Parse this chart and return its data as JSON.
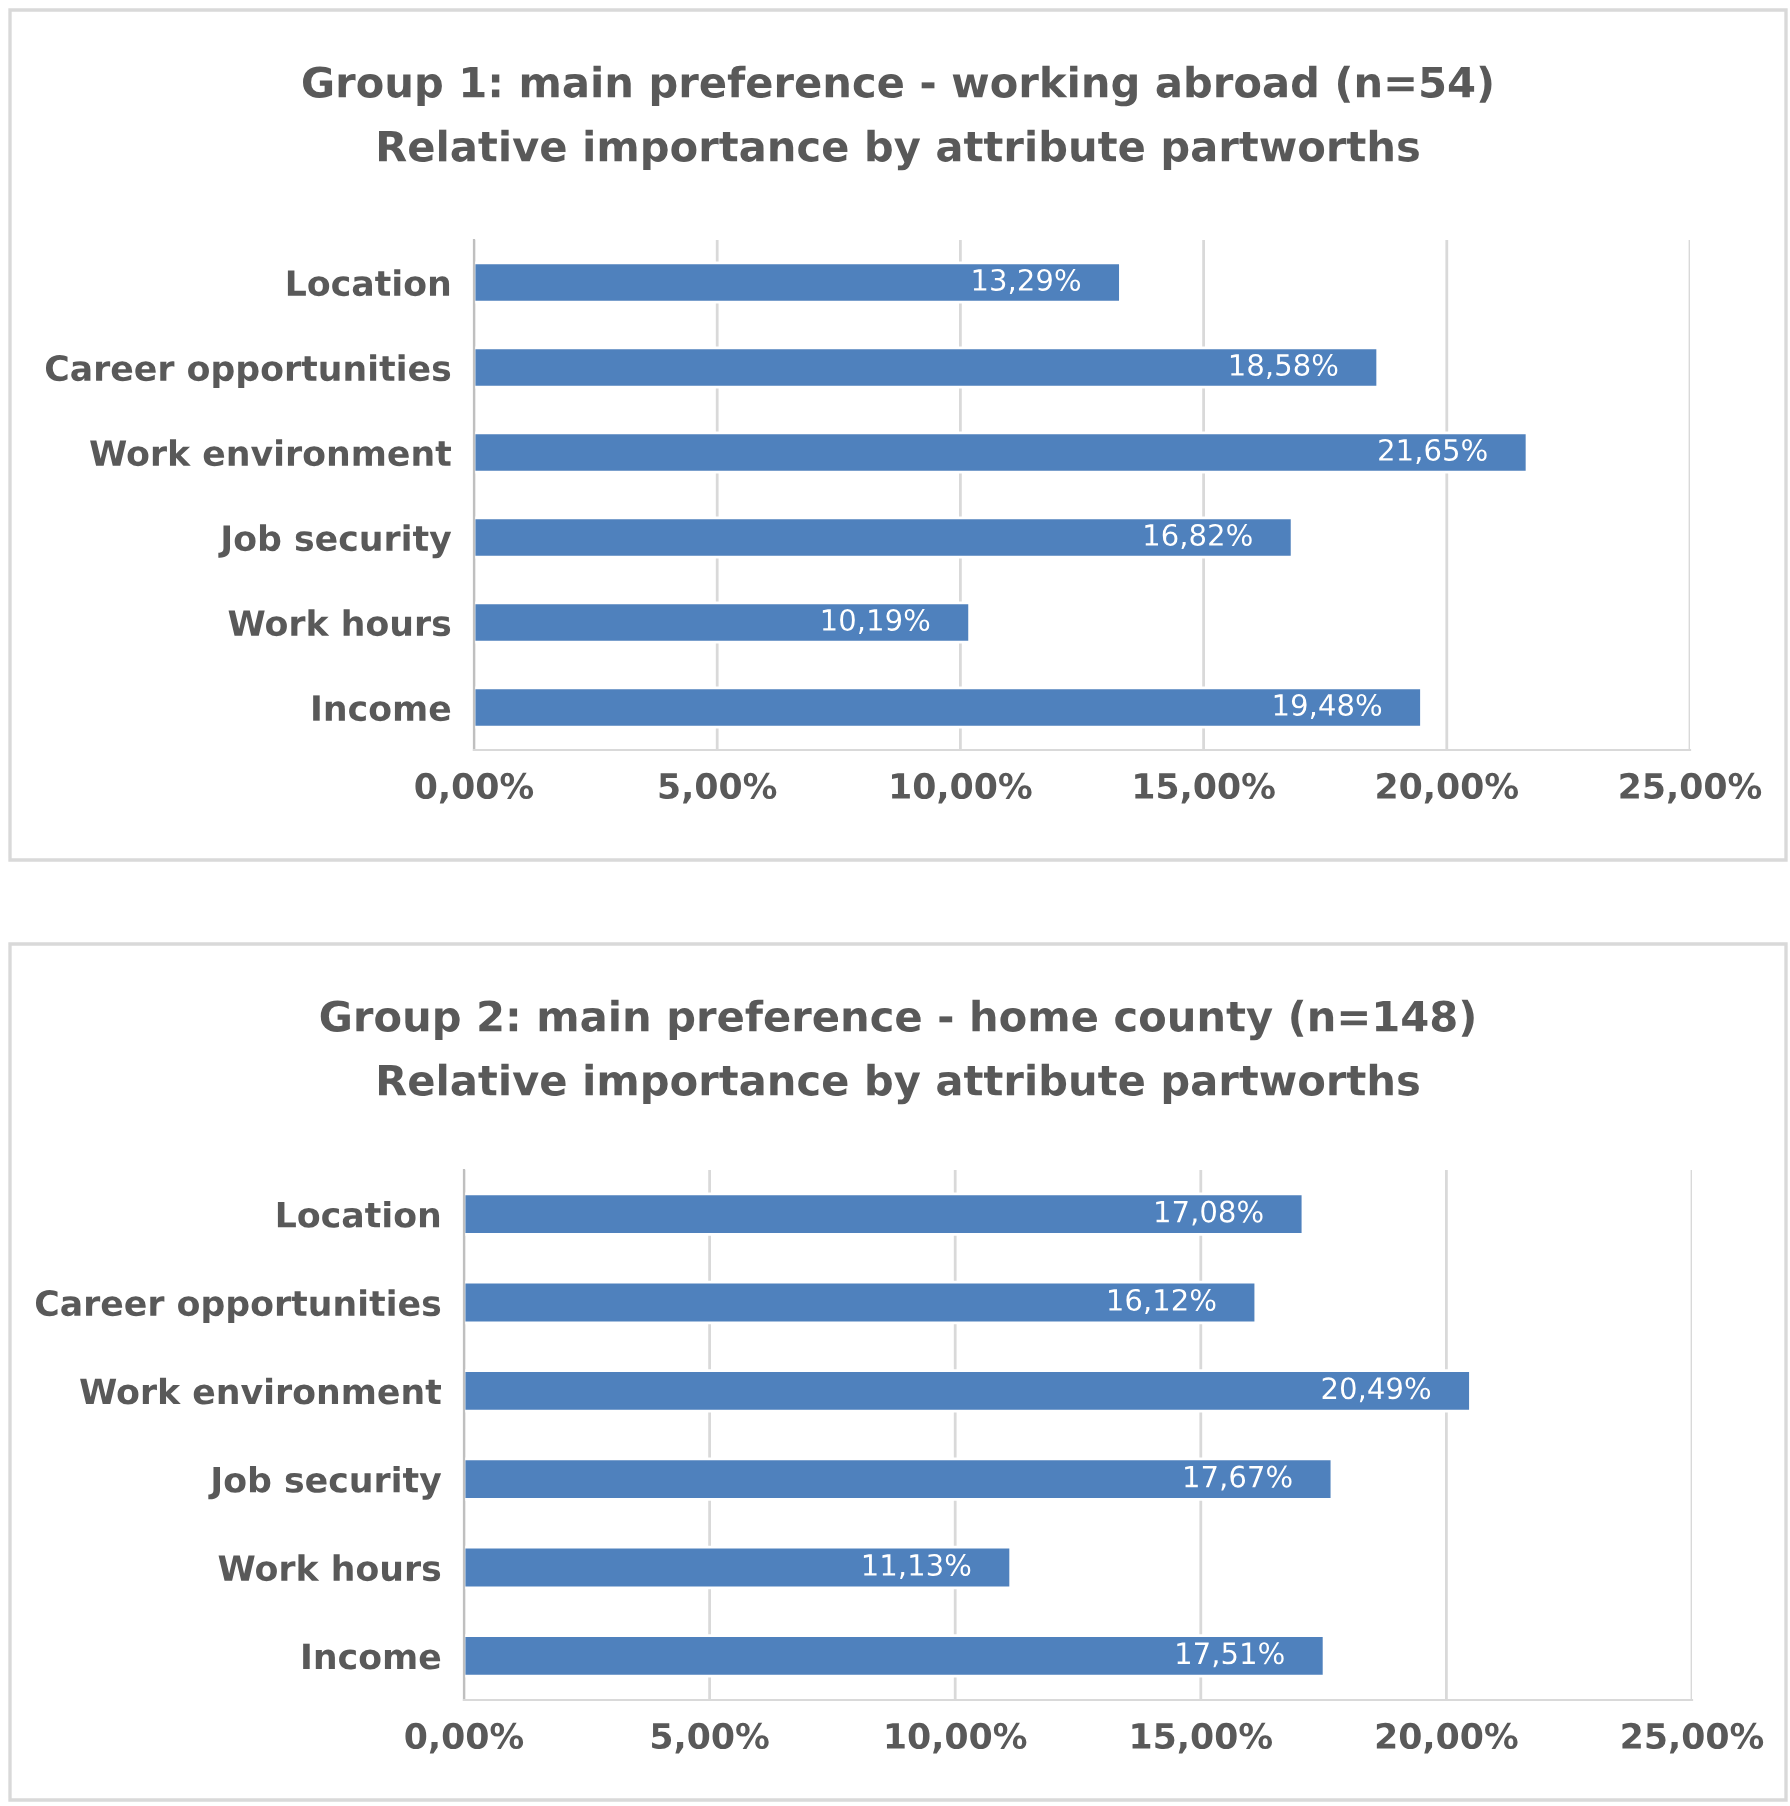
{
  "chart_data": [
    {
      "type": "bar",
      "orientation": "horizontal",
      "title": "Group 1: main preference - working abroad (n=54)",
      "subtitle": "Relative importance by attribute partworths",
      "categories": [
        "Location",
        "Career opportunities",
        "Work environment",
        "Job security",
        "Work hours",
        "Income"
      ],
      "values": [
        13.29,
        18.58,
        21.65,
        16.82,
        10.19,
        19.48
      ],
      "color": "#4f81bd",
      "value_labels": [
        "13,29%",
        "18,58%",
        "21,65%",
        "16,82%",
        "10,19%",
        "19,48%"
      ],
      "xlim": [
        0,
        25
      ],
      "xticks": [
        {
          "value": 0,
          "label": "0,00%"
        },
        {
          "value": 5,
          "label": "5,00%"
        },
        {
          "value": 10,
          "label": "10,00%"
        },
        {
          "value": 15,
          "label": "15,00%"
        },
        {
          "value": 20,
          "label": "20,00%"
        },
        {
          "value": 25,
          "label": "25,00%"
        }
      ],
      "grid": "x"
    },
    {
      "type": "bar",
      "orientation": "horizontal",
      "title": "Group 2: main preference - home county (n=148)",
      "subtitle": "Relative importance by attribute partworths",
      "categories": [
        "Location",
        "Career opportunities",
        "Work environment",
        "Job security",
        "Work hours",
        "Income"
      ],
      "values": [
        17.08,
        16.12,
        20.49,
        17.67,
        11.13,
        17.51
      ],
      "color": "#4f81bd",
      "value_labels": [
        "17,08%",
        "16,12%",
        "20,49%",
        "17,67%",
        "11,13%",
        "17,51%"
      ],
      "xlim": [
        0,
        25
      ],
      "xticks": [
        {
          "value": 0,
          "label": "0,00%"
        },
        {
          "value": 5,
          "label": "5,00%"
        },
        {
          "value": 10,
          "label": "10,00%"
        },
        {
          "value": 15,
          "label": "15,00%"
        },
        {
          "value": 20,
          "label": "20,00%"
        },
        {
          "value": 25,
          "label": "25,00%"
        }
      ],
      "grid": "x"
    }
  ]
}
